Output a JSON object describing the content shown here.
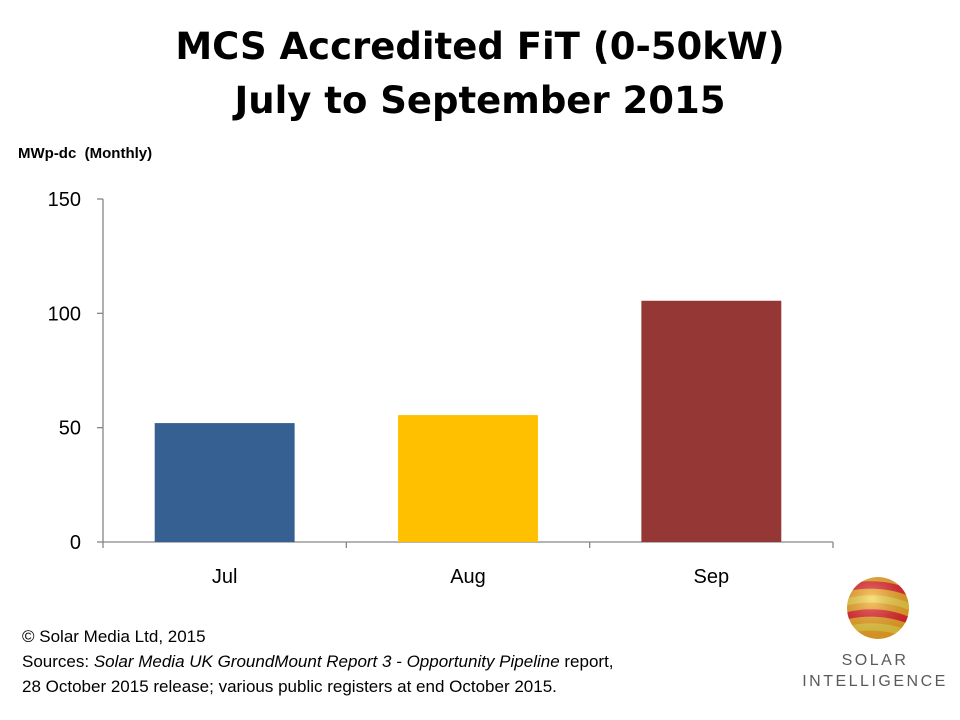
{
  "header": {
    "title_line1": "MCS Accredited FiT (0-50kW)",
    "title_line2": "July to September 2015"
  },
  "chart_data": {
    "type": "bar",
    "title": "MCS Accredited FiT (0-50kW) July to September 2015",
    "ylabel": "MWp-dc  (Monthly)",
    "xlabel": "",
    "categories": [
      "Jul",
      "Aug",
      "Sep"
    ],
    "values": [
      52,
      55.5,
      105.5
    ],
    "colors": [
      "#376092",
      "#FFC000",
      "#953735"
    ],
    "ylim": [
      0,
      150
    ],
    "yticks": [
      0,
      50,
      100,
      150
    ],
    "grid": false,
    "legend": "none"
  },
  "footer": {
    "copyright": "© Solar Media Ltd, 2015",
    "sources_prefix": "Sources: ",
    "sources_report": "Solar Media UK GroundMount Report 3 - Opportunity Pipeline",
    "sources_suffix": " report,",
    "sources_line2": "28 October 2015 release; various public registers at end October 2015."
  },
  "logo": {
    "line1": "SOLAR",
    "line2": "INTELLIGENCE",
    "colors": [
      "#E8262A",
      "#F7A823",
      "#F4D03F"
    ]
  }
}
